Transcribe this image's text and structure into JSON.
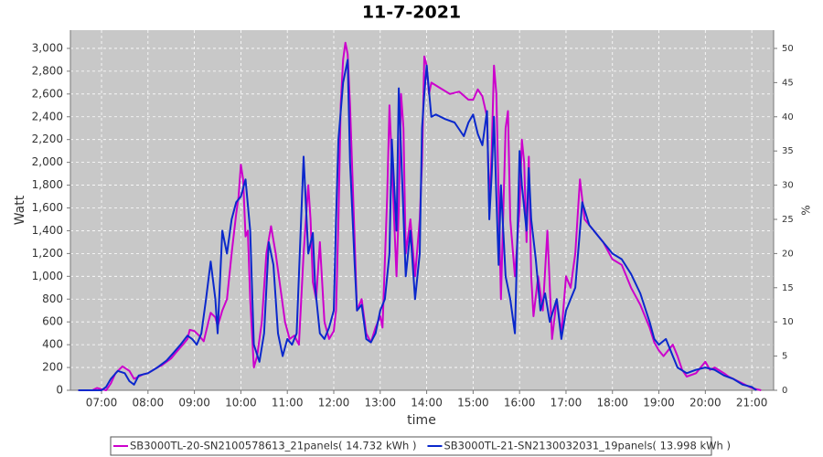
{
  "chart_data": {
    "type": "line",
    "title": "11-7-2021",
    "xlabel": "time",
    "ylabel": "Watt",
    "y2label": "%",
    "xlim": [
      6.33,
      21.47
    ],
    "ylim": [
      0,
      3160
    ],
    "y2lim": [
      0,
      52.67
    ],
    "grid": true,
    "legend": "bottom",
    "xticks": [
      {
        "value": 7,
        "label": "07:00"
      },
      {
        "value": 8,
        "label": "08:00"
      },
      {
        "value": 9,
        "label": "09:00"
      },
      {
        "value": 10,
        "label": "10:00"
      },
      {
        "value": 11,
        "label": "11:00"
      },
      {
        "value": 12,
        "label": "12:00"
      },
      {
        "value": 13,
        "label": "13:00"
      },
      {
        "value": 14,
        "label": "14:00"
      },
      {
        "value": 15,
        "label": "15:00"
      },
      {
        "value": 16,
        "label": "16:00"
      },
      {
        "value": 17,
        "label": "17:00"
      },
      {
        "value": 18,
        "label": "18:00"
      },
      {
        "value": 19,
        "label": "19:00"
      },
      {
        "value": 20,
        "label": "20:00"
      },
      {
        "value": 21,
        "label": "21:00"
      }
    ],
    "yticks": [
      0,
      200,
      400,
      600,
      800,
      {
        "value": 1000,
        "label": "1,000"
      },
      {
        "value": 1200,
        "label": "1,200"
      },
      {
        "value": 1400,
        "label": "1,400"
      },
      {
        "value": 1600,
        "label": "1,600"
      },
      {
        "value": 1800,
        "label": "1,800"
      },
      {
        "value": 2000,
        "label": "2,000"
      },
      {
        "value": 2200,
        "label": "2,200"
      },
      {
        "value": 2400,
        "label": "2,400"
      },
      {
        "value": 2600,
        "label": "2,600"
      },
      {
        "value": 2800,
        "label": "2,800"
      },
      {
        "value": 3000,
        "label": "3,000"
      }
    ],
    "y2ticks": [
      0,
      5,
      10,
      15,
      20,
      25,
      30,
      35,
      40,
      45,
      50
    ],
    "series": [
      {
        "name": "SB3000TL-20-SN2100578613_21panels( 14.732 kWh )",
        "color": "#cc00cc",
        "x": [
          6.5,
          6.8,
          6.9,
          7.0,
          7.1,
          7.2,
          7.3,
          7.45,
          7.6,
          7.7,
          7.8,
          7.9,
          8.0,
          8.2,
          8.3,
          8.5,
          8.6,
          8.75,
          8.85,
          8.9,
          9.0,
          9.1,
          9.2,
          9.3,
          9.35,
          9.45,
          9.5,
          9.6,
          9.7,
          9.8,
          9.9,
          9.95,
          10.0,
          10.05,
          10.1,
          10.15,
          10.2,
          10.28,
          10.35,
          10.45,
          10.55,
          10.65,
          10.75,
          10.85,
          10.95,
          11.05,
          11.15,
          11.25,
          11.35,
          11.45,
          11.5,
          11.55,
          11.62,
          11.7,
          11.8,
          11.9,
          12.0,
          12.05,
          12.1,
          12.15,
          12.2,
          12.25,
          12.3,
          12.35,
          12.45,
          12.5,
          12.6,
          12.7,
          12.8,
          12.9,
          13.0,
          13.05,
          13.15,
          13.2,
          13.25,
          13.3,
          13.35,
          13.4,
          13.45,
          13.5,
          13.55,
          13.65,
          13.75,
          13.85,
          13.9,
          13.95,
          14.0,
          14.05,
          14.1,
          14.3,
          14.5,
          14.7,
          14.9,
          15.0,
          15.1,
          15.2,
          15.3,
          15.35,
          15.4,
          15.45,
          15.5,
          15.55,
          15.6,
          15.7,
          15.75,
          15.8,
          15.9,
          16.0,
          16.05,
          16.1,
          16.15,
          16.2,
          16.25,
          16.3,
          16.4,
          16.5,
          16.6,
          16.7,
          16.8,
          16.9,
          17.0,
          17.1,
          17.2,
          17.3,
          17.4,
          17.6,
          17.8,
          18.0,
          18.2,
          18.4,
          18.6,
          18.8,
          18.9,
          19.0,
          19.1,
          19.3,
          19.4,
          19.5,
          19.6,
          19.8,
          20.0,
          20.1,
          20.2,
          20.4,
          20.5,
          20.7,
          20.9,
          21.0,
          21.1,
          21.2
        ],
        "values": [
          0,
          0,
          20,
          10,
          0,
          60,
          150,
          210,
          170,
          100,
          120,
          140,
          150,
          200,
          220,
          280,
          330,
          400,
          450,
          530,
          520,
          480,
          430,
          600,
          680,
          640,
          560,
          700,
          800,
          1200,
          1550,
          1700,
          1980,
          1850,
          1350,
          1400,
          800,
          200,
          300,
          600,
          1200,
          1440,
          1200,
          900,
          600,
          450,
          480,
          400,
          1200,
          1800,
          1500,
          950,
          800,
          1300,
          600,
          450,
          520,
          700,
          1500,
          2500,
          2900,
          3050,
          2950,
          2500,
          1300,
          700,
          800,
          500,
          420,
          550,
          650,
          550,
          1700,
          2500,
          2000,
          1500,
          1000,
          1600,
          2600,
          2300,
          1200,
          1500,
          1000,
          1500,
          2000,
          2930,
          2850,
          2600,
          2700,
          2650,
          2600,
          2620,
          2550,
          2550,
          2640,
          2580,
          2400,
          1600,
          2100,
          2850,
          2600,
          1700,
          800,
          2300,
          2450,
          1500,
          1000,
          1600,
          2200,
          2000,
          1300,
          2050,
          1000,
          650,
          1000,
          700,
          1400,
          450,
          800,
          500,
          1000,
          900,
          1200,
          1850,
          1500,
          1400,
          1300,
          1150,
          1100,
          900,
          750,
          550,
          420,
          350,
          300,
          400,
          300,
          180,
          120,
          150,
          250,
          180,
          200,
          150,
          120,
          80,
          40,
          20,
          10,
          0
        ]
      },
      {
        "name": "SB3000TL-21-SN2130032031_19panels( 13.998 kWh )",
        "color": "#0a28cc",
        "x": [
          6.5,
          7.0,
          7.1,
          7.2,
          7.35,
          7.5,
          7.6,
          7.7,
          7.8,
          8.0,
          8.2,
          8.4,
          8.55,
          8.7,
          8.85,
          8.95,
          9.05,
          9.15,
          9.25,
          9.35,
          9.45,
          9.5,
          9.6,
          9.7,
          9.8,
          9.9,
          10.0,
          10.1,
          10.2,
          10.28,
          10.4,
          10.5,
          10.6,
          10.7,
          10.8,
          10.9,
          11.0,
          11.1,
          11.2,
          11.35,
          11.45,
          11.55,
          11.6,
          11.7,
          11.8,
          11.9,
          12.0,
          12.05,
          12.1,
          12.2,
          12.3,
          12.35,
          12.45,
          12.5,
          12.6,
          12.7,
          12.8,
          12.9,
          13.0,
          13.1,
          13.2,
          13.25,
          13.35,
          13.4,
          13.45,
          13.55,
          13.65,
          13.75,
          13.85,
          13.9,
          13.95,
          14.0,
          14.1,
          14.2,
          14.4,
          14.6,
          14.8,
          14.9,
          15.0,
          15.1,
          15.2,
          15.3,
          15.35,
          15.4,
          15.45,
          15.5,
          15.55,
          15.6,
          15.7,
          15.8,
          15.9,
          16.0,
          16.05,
          16.15,
          16.2,
          16.25,
          16.35,
          16.45,
          16.55,
          16.65,
          16.8,
          16.9,
          17.0,
          17.1,
          17.2,
          17.35,
          17.5,
          17.7,
          17.9,
          18.0,
          18.2,
          18.4,
          18.6,
          18.8,
          18.9,
          19.0,
          19.15,
          19.3,
          19.4,
          19.6,
          19.8,
          20.0,
          20.2,
          20.4,
          20.6,
          20.8,
          21.0,
          21.1
        ],
        "values": [
          0,
          0,
          30,
          100,
          170,
          150,
          80,
          50,
          130,
          150,
          200,
          260,
          330,
          400,
          480,
          450,
          400,
          500,
          800,
          1130,
          800,
          500,
          1400,
          1200,
          1500,
          1650,
          1700,
          1850,
          1400,
          400,
          250,
          500,
          1300,
          1100,
          500,
          300,
          450,
          400,
          500,
          2050,
          1200,
          1380,
          900,
          500,
          450,
          550,
          700,
          1500,
          2200,
          2700,
          2900,
          2000,
          1100,
          700,
          750,
          450,
          420,
          500,
          700,
          800,
          1200,
          2200,
          1400,
          2650,
          2100,
          1000,
          1400,
          800,
          1200,
          2300,
          2600,
          2850,
          2400,
          2420,
          2380,
          2350,
          2230,
          2350,
          2420,
          2250,
          2150,
          2450,
          1500,
          1900,
          2400,
          1700,
          1100,
          1800,
          1000,
          800,
          500,
          2100,
          1800,
          1400,
          1950,
          1500,
          1150,
          700,
          850,
          600,
          800,
          450,
          700,
          800,
          900,
          1650,
          1450,
          1350,
          1250,
          1200,
          1150,
          1020,
          850,
          600,
          450,
          400,
          450,
          300,
          200,
          150,
          180,
          200,
          180,
          130,
          100,
          50,
          30,
          0
        ]
      }
    ]
  }
}
